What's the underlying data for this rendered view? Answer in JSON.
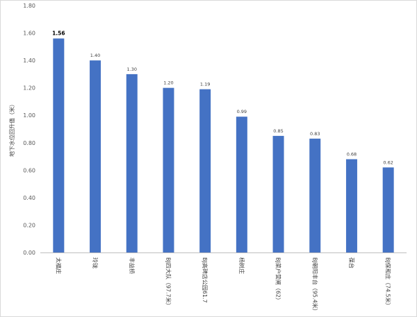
{
  "chart_data": {
    "type": "bar",
    "title": "",
    "xlabel": "",
    "ylabel": "地下水位回升值（米）",
    "ylim": [
      0,
      1.8
    ],
    "yticks": [
      "0.00",
      "0.20",
      "0.40",
      "0.60",
      "0.80",
      "1.00",
      "1.20",
      "1.40",
      "1.60",
      "1.80"
    ],
    "grid": false,
    "legend": "none",
    "categories": [
      "太福庄",
      "玲珑",
      "丰益桥",
      "BJ四大队（97.7米）",
      "BJ高碑店公园61.7",
      "杨树庄",
      "BJ菜户营闸（62）",
      "BJ朝阳丰台（95.4米）",
      "葆台",
      "BJ保和庄（74.5米）"
    ],
    "values": [
      1.56,
      1.4,
      1.3,
      1.2,
      1.19,
      0.99,
      0.85,
      0.83,
      0.68,
      0.62
    ],
    "data_labels": [
      "1.56",
      "1.40",
      "1.30",
      "1.20",
      "1.19",
      "0.99",
      "0.85",
      "0.83",
      "0.68",
      "0.62"
    ],
    "bar_color": "#4472C4"
  }
}
